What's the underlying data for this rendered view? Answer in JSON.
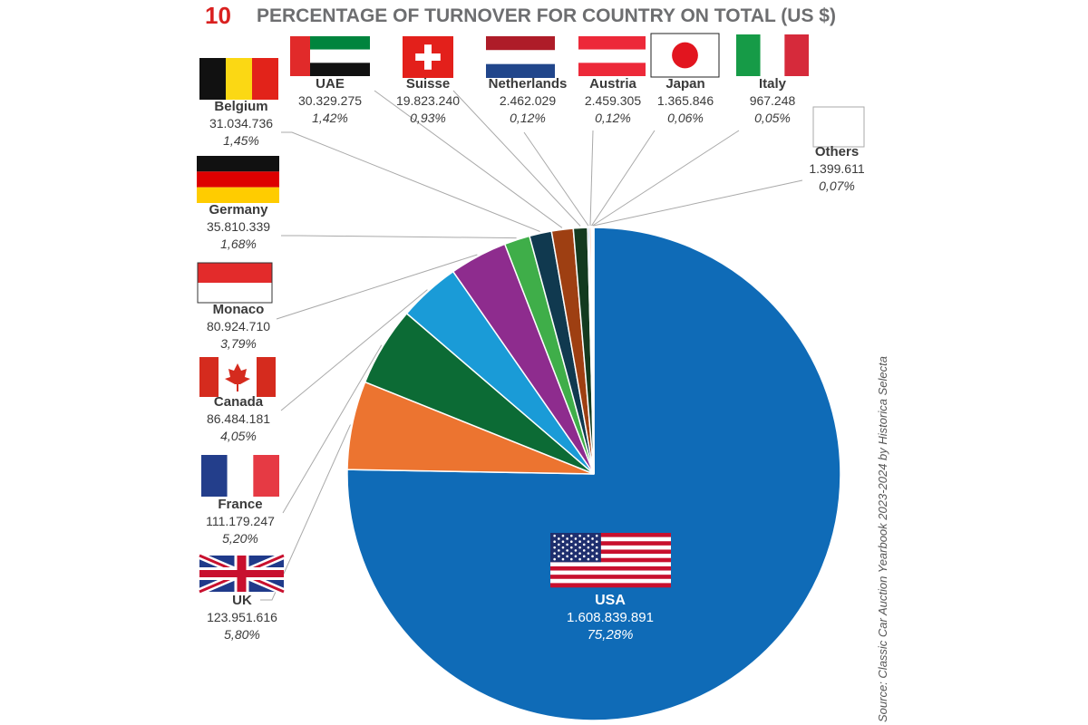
{
  "figure": {
    "number": "10",
    "title": "PERCENTAGE OF TURNOVER FOR COUNTRY ON TOTAL (US $)",
    "source": "Source: Classic Car Auction Yearbook 2023-2024 by Historica Selecta"
  },
  "chart_data": {
    "type": "pie",
    "title": "PERCENTAGE OF TURNOVER FOR COUNTRY ON TOTAL (US $)",
    "slices": [
      {
        "key": "usa",
        "label": "USA",
        "value_text": "1.608.839.891",
        "value": 1608839891,
        "percent_text": "75,28%",
        "percent": 75.28,
        "color": "#0f6bb7",
        "flag": "usa-flag-icon"
      },
      {
        "key": "uk",
        "label": "UK",
        "value_text": "123.951.616",
        "value": 123951616,
        "percent_text": "5,80%",
        "percent": 5.8,
        "color": "#ec7430",
        "flag": "uk-flag-icon"
      },
      {
        "key": "france",
        "label": "France",
        "value_text": "111.179.247",
        "value": 111179247,
        "percent_text": "5,20%",
        "percent": 5.2,
        "color": "#0c6b35",
        "flag": "france-flag-icon"
      },
      {
        "key": "canada",
        "label": "Canada",
        "value_text": "86.484.181",
        "value": 86484181,
        "percent_text": "4,05%",
        "percent": 4.05,
        "color": "#1a9bd7",
        "flag": "canada-flag-icon"
      },
      {
        "key": "monaco",
        "label": "Monaco",
        "value_text": "80.924.710",
        "value": 80924710,
        "percent_text": "3,79%",
        "percent": 3.79,
        "color": "#8e2c8e",
        "flag": "monaco-flag-icon"
      },
      {
        "key": "germany",
        "label": "Germany",
        "value_text": "35.810.339",
        "value": 35810339,
        "percent_text": "1,68%",
        "percent": 1.68,
        "color": "#3fae49",
        "flag": "germany-flag-icon"
      },
      {
        "key": "belgium",
        "label": "Belgium",
        "value_text": "31.034.736",
        "value": 31034736,
        "percent_text": "1,45%",
        "percent": 1.45,
        "color": "#10394f",
        "flag": "belgium-flag-icon"
      },
      {
        "key": "uae",
        "label": "UAE",
        "value_text": "30.329.275",
        "value": 30329275,
        "percent_text": "1,42%",
        "percent": 1.42,
        "color": "#9e3f12",
        "flag": "uae-flag-icon"
      },
      {
        "key": "suisse",
        "label": "Suisse",
        "value_text": "19.823.240",
        "value": 19823240,
        "percent_text": "0,93%",
        "percent": 0.93,
        "color": "#133a1f",
        "flag": "switzerland-flag-icon"
      },
      {
        "key": "netherlands",
        "label": "Netherlands",
        "value_text": "2.462.029",
        "value": 2462029,
        "percent_text": "0,12%",
        "percent": 0.12,
        "color": "#7aa7d8",
        "flag": "netherlands-flag-icon"
      },
      {
        "key": "austria",
        "label": "Austria",
        "value_text": "2.459.305",
        "value": 2459305,
        "percent_text": "0,12%",
        "percent": 0.12,
        "color": "#f2a27a",
        "flag": "austria-flag-icon"
      },
      {
        "key": "japan",
        "label": "Japan",
        "value_text": "1.365.846",
        "value": 1365846,
        "percent_text": "0,06%",
        "percent": 0.06,
        "color": "#9ad29f",
        "flag": "japan-flag-icon"
      },
      {
        "key": "italy",
        "label": "Italy",
        "value_text": "967.248",
        "value": 967248,
        "percent_text": "0,05%",
        "percent": 0.05,
        "color": "#76c6e8",
        "flag": "italy-flag-icon"
      },
      {
        "key": "others",
        "label": "Others",
        "value_text": "1.399.611",
        "value": 1399611,
        "percent_text": "0,07%",
        "percent": 0.07,
        "color": "#c39bc4",
        "flag": "others-blank-flag-icon"
      }
    ]
  }
}
